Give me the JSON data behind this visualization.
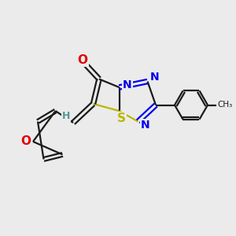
{
  "background_color": "#ebebeb",
  "bond_color": "#1a1a1a",
  "furan_O_color": "#e00000",
  "carbonyl_O_color": "#e00000",
  "S_color": "#b8b800",
  "N_color": "#0000ee",
  "H_color": "#4d9999",
  "figsize": [
    3.0,
    3.0
  ],
  "dpi": 100,
  "xlim": [
    0,
    10
  ],
  "ylim": [
    0,
    10
  ]
}
